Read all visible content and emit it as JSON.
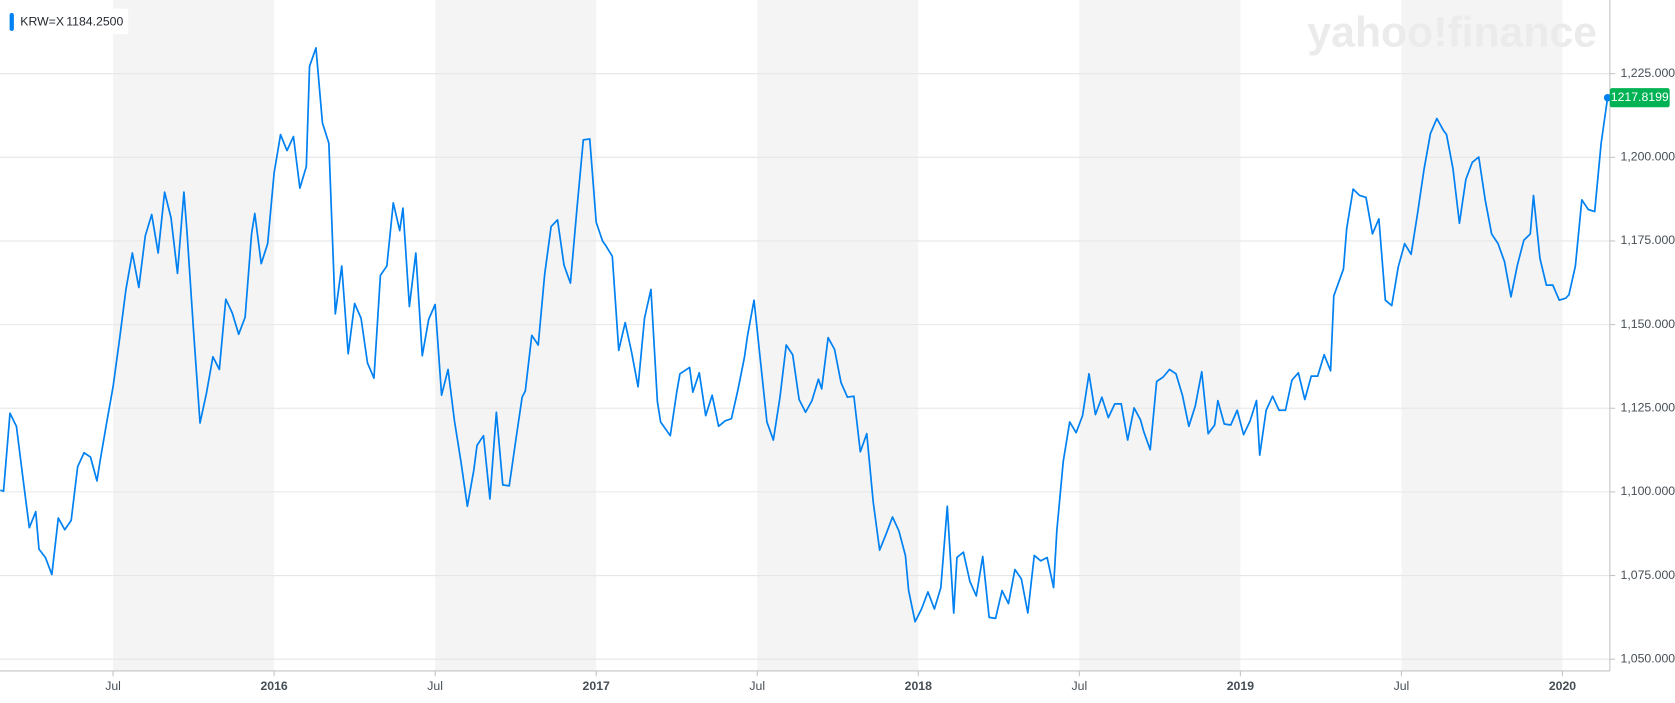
{
  "chart_data": {
    "type": "line",
    "watermark": "yahoo!finance",
    "legend_value": "1184.2500",
    "last_price": 1217.8199,
    "xlim": [
      2015.149,
      2020.147
    ],
    "ylim": [
      1046.5,
      1247.0
    ],
    "grid": true,
    "shade": "#f4f4f4",
    "xticks": [
      {
        "value": 2015.5,
        "label": "Jul"
      },
      {
        "value": 2016,
        "label": "2016"
      },
      {
        "value": 2016.5,
        "label": "Jul"
      },
      {
        "value": 2017,
        "label": "2017"
      },
      {
        "value": 2017.5,
        "label": "Jul"
      },
      {
        "value": 2018,
        "label": "2018"
      },
      {
        "value": 2018.5,
        "label": "Jul"
      },
      {
        "value": 2019,
        "label": "2019"
      },
      {
        "value": 2019.5,
        "label": "Jul"
      },
      {
        "value": 2020,
        "label": "2020"
      }
    ],
    "yticks": [
      {
        "value": 1050,
        "label": "1,050.0000"
      },
      {
        "value": 1075,
        "label": "1,075.0000"
      },
      {
        "value": 1100,
        "label": "1,100.0000"
      },
      {
        "value": 1125,
        "label": "1,125.0000"
      },
      {
        "value": 1150,
        "label": "1,150.0000"
      },
      {
        "value": 1175,
        "label": "1,175.0000"
      },
      {
        "value": 1200,
        "label": "1,200.0000"
      },
      {
        "value": 1225,
        "label": "1,225.0000"
      }
    ],
    "x": [
      2015.15,
      2015.16,
      2015.18,
      2015.2,
      2015.22,
      2015.24,
      2015.26,
      2015.27,
      2015.29,
      2015.31,
      2015.33,
      2015.35,
      2015.37,
      2015.39,
      2015.41,
      2015.43,
      2015.45,
      2015.46,
      2015.48,
      2015.5,
      2015.52,
      2015.54,
      2015.56,
      2015.58,
      2015.6,
      2015.62,
      2015.64,
      2015.66,
      2015.68,
      2015.7,
      2015.72,
      2015.73,
      2015.75,
      2015.77,
      2015.79,
      2015.81,
      2015.83,
      2015.85,
      2015.87,
      2015.89,
      2015.91,
      2015.93,
      2015.94,
      2015.96,
      2015.98,
      2016,
      2016.02,
      2016.04,
      2016.06,
      2016.08,
      2016.1,
      2016.11,
      2016.13,
      2016.15,
      2016.17,
      2016.19,
      2016.21,
      2016.23,
      2016.25,
      2016.27,
      2016.29,
      2016.31,
      2016.33,
      2016.35,
      2016.37,
      2016.39,
      2016.4,
      2016.42,
      2016.44,
      2016.46,
      2016.48,
      2016.5,
      2016.52,
      2016.54,
      2016.56,
      2016.58,
      2016.6,
      2016.62,
      2016.63,
      2016.65,
      2016.67,
      2016.69,
      2016.71,
      2016.73,
      2016.75,
      2016.77,
      2016.78,
      2016.8,
      2016.82,
      2016.84,
      2016.86,
      2016.88,
      2016.9,
      2016.92,
      2016.94,
      2016.96,
      2016.98,
      2017,
      2017.02,
      2017.03,
      2017.05,
      2017.07,
      2017.09,
      2017.11,
      2017.13,
      2017.15,
      2017.17,
      2017.19,
      2017.2,
      2017.23,
      2017.25,
      2017.26,
      2017.29,
      2017.3,
      2017.32,
      2017.34,
      2017.36,
      2017.38,
      2017.4,
      2017.42,
      2017.44,
      2017.46,
      2017.47,
      2017.49,
      2017.51,
      2017.53,
      2017.55,
      2017.57,
      2017.59,
      2017.61,
      2017.63,
      2017.65,
      2017.67,
      2017.69,
      2017.7,
      2017.72,
      2017.74,
      2017.76,
      2017.78,
      2017.8,
      2017.82,
      2017.84,
      2017.86,
      2017.88,
      2017.9,
      2017.92,
      2017.94,
      2017.96,
      2017.97,
      2017.99,
      2018.01,
      2018.03,
      2018.05,
      2018.07,
      2018.09,
      2018.11,
      2018.12,
      2018.14,
      2018.16,
      2018.18,
      2018.2,
      2018.22,
      2018.24,
      2018.26,
      2018.28,
      2018.3,
      2018.32,
      2018.34,
      2018.36,
      2018.38,
      2018.4,
      2018.42,
      2018.43,
      2018.45,
      2018.47,
      2018.49,
      2018.51,
      2018.53,
      2018.55,
      2018.57,
      2018.59,
      2018.61,
      2018.63,
      2018.65,
      2018.67,
      2018.69,
      2018.7,
      2018.72,
      2018.74,
      2018.76,
      2018.78,
      2018.8,
      2018.82,
      2018.84,
      2018.86,
      2018.88,
      2018.9,
      2018.92,
      2018.93,
      2018.95,
      2018.97,
      2018.99,
      2019.01,
      2019.03,
      2019.05,
      2019.06,
      2019.08,
      2019.1,
      2019.12,
      2019.14,
      2019.16,
      2019.18,
      2019.2,
      2019.22,
      2019.24,
      2019.26,
      2019.28,
      2019.29,
      2019.32,
      2019.33,
      2019.35,
      2019.37,
      2019.39,
      2019.41,
      2019.43,
      2019.45,
      2019.47,
      2019.49,
      2019.51,
      2019.53,
      2019.55,
      2019.57,
      2019.59,
      2019.61,
      2019.63,
      2019.64,
      2019.66,
      2019.68,
      2019.7,
      2019.72,
      2019.74,
      2019.76,
      2019.78,
      2019.8,
      2019.82,
      2019.84,
      2019.86,
      2019.88,
      2019.9,
      2019.91,
      2019.93,
      2019.95,
      2019.97,
      2019.99,
      2020.01,
      2020.02,
      2020.04,
      2020.06,
      2020.08,
      2020.1,
      2020.12,
      2020.14
    ],
    "series": [
      {
        "name": "KRW=X",
        "color": "#0081f2",
        "values": [
          1100.5,
          1100.2,
          1123.5,
          1119.6,
          1104.3,
          1089.3,
          1094.1,
          1082.9,
          1080.4,
          1075.3,
          1092.2,
          1088.7,
          1091.5,
          1107.5,
          1111.7,
          1110.4,
          1103.3,
          1109.4,
          1120.6,
          1131.4,
          1145.5,
          1160.5,
          1171.4,
          1161.1,
          1176.5,
          1182.9,
          1171.4,
          1189.6,
          1181.9,
          1165.3,
          1189.6,
          1177.1,
          1148.0,
          1120.6,
          1129.5,
          1140.4,
          1136.6,
          1157.6,
          1153.5,
          1147.1,
          1152.2,
          1177.1,
          1183.2,
          1168.2,
          1174.2,
          1195.3,
          1206.8,
          1202.0,
          1206.2,
          1190.8,
          1197.2,
          1227.2,
          1232.7,
          1210.3,
          1204.2,
          1153.2,
          1167.5,
          1141.3,
          1156.3,
          1151.9,
          1138.5,
          1134.0,
          1164.7,
          1167.5,
          1186.4,
          1178.1,
          1184.8,
          1155.4,
          1171.4,
          1140.7,
          1151.6,
          1156.0,
          1128.9,
          1136.6,
          1121.2,
          1109.1,
          1095.7,
          1106.5,
          1113.9,
          1116.8,
          1097.9,
          1123.8,
          1102.1,
          1101.8,
          1115.2,
          1128.3,
          1130.2,
          1146.8,
          1143.9,
          1165.0,
          1179.3,
          1181.3,
          1167.8,
          1162.4,
          1184.4,
          1205.2,
          1205.5,
          1180.6,
          1174.9,
          1173.6,
          1170.4,
          1142.3,
          1150.6,
          1141.7,
          1131.4,
          1151.9,
          1160.5,
          1127.0,
          1120.9,
          1116.8,
          1129.8,
          1135.3,
          1137.2,
          1129.8,
          1135.6,
          1122.8,
          1128.9,
          1119.6,
          1121.2,
          1121.9,
          1130.5,
          1140.1,
          1146.8,
          1157.3,
          1139.1,
          1120.9,
          1115.5,
          1127.9,
          1143.9,
          1141.0,
          1127.6,
          1123.8,
          1127.3,
          1133.7,
          1130.8,
          1146.1,
          1142.6,
          1132.7,
          1128.3,
          1128.6,
          1112.0,
          1117.4,
          1097.0,
          1082.6,
          1087.4,
          1092.5,
          1088.3,
          1081.0,
          1070.5,
          1061.2,
          1065.0,
          1070.1,
          1065.0,
          1071.4,
          1095.7,
          1063.8,
          1080.4,
          1082.0,
          1073.3,
          1068.9,
          1080.7,
          1062.5,
          1062.2,
          1070.5,
          1066.6,
          1076.8,
          1074.0,
          1063.8,
          1081.0,
          1079.4,
          1080.4,
          1071.4,
          1088.3,
          1109.1,
          1120.9,
          1117.7,
          1122.8,
          1135.3,
          1123.1,
          1128.3,
          1122.2,
          1126.3,
          1126.3,
          1115.5,
          1125.1,
          1121.5,
          1118.0,
          1112.6,
          1133.0,
          1134.3,
          1136.6,
          1135.3,
          1128.9,
          1119.6,
          1125.7,
          1135.9,
          1117.4,
          1120.0,
          1127.3,
          1120.3,
          1120.0,
          1124.4,
          1117.1,
          1121.2,
          1127.3,
          1111.0,
          1124.4,
          1128.6,
          1124.4,
          1124.4,
          1133.4,
          1135.6,
          1127.6,
          1134.6,
          1134.6,
          1141.0,
          1136.2,
          1158.6,
          1166.6,
          1178.7,
          1190.5,
          1188.6,
          1188.0,
          1177.1,
          1181.6,
          1157.3,
          1155.7,
          1167.2,
          1174.2,
          1171.0,
          1183.2,
          1196.3,
          1207.1,
          1211.6,
          1208.1,
          1206.8,
          1196.6,
          1180.3,
          1193.4,
          1198.5,
          1200.1,
          1187.3,
          1177.1,
          1174.2,
          1168.8,
          1158.3,
          1167.8,
          1175.2,
          1177.1,
          1188.6,
          1169.8,
          1161.8,
          1161.8,
          1157.3,
          1157.9,
          1158.9,
          1167.5,
          1187.3,
          1184.4,
          1183.8,
          1204.2,
          1217.8199
        ]
      }
    ]
  }
}
